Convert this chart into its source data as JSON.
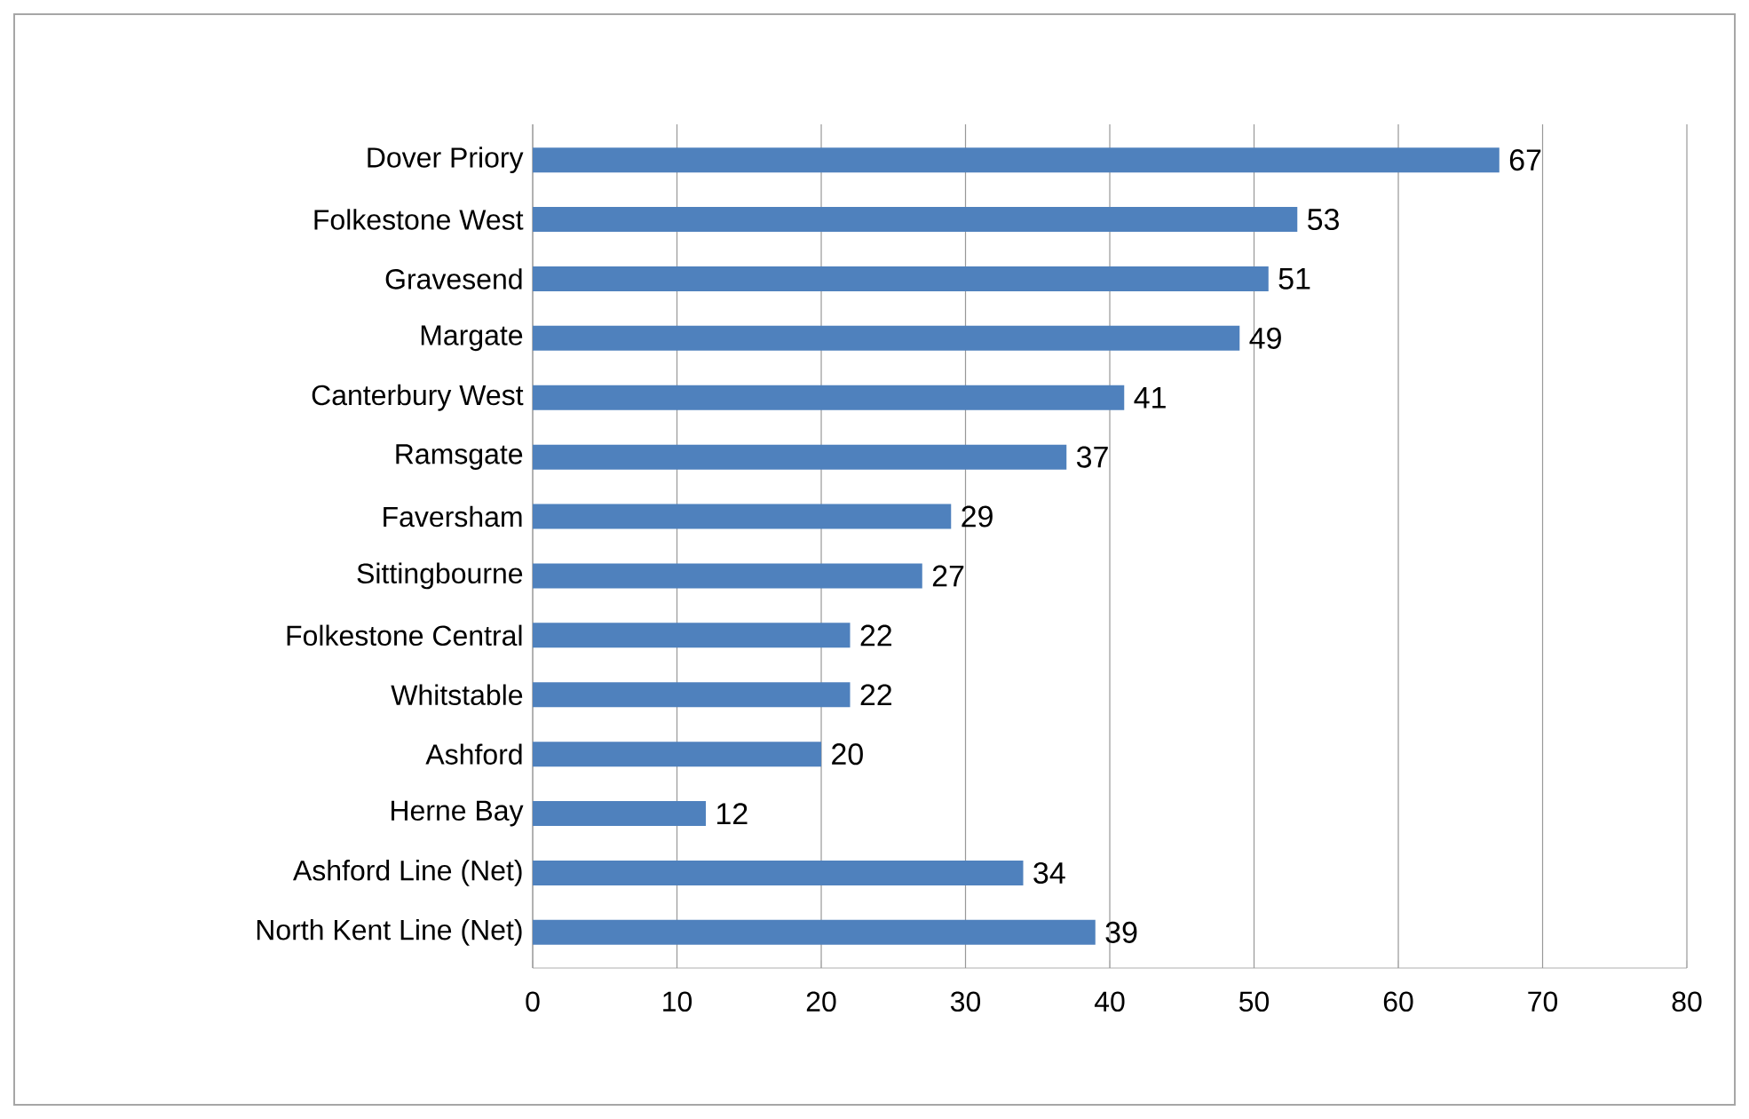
{
  "chart_data": {
    "type": "bar",
    "orientation": "horizontal",
    "categories": [
      "Dover Priory",
      "Folkestone West",
      "Gravesend",
      "Margate",
      "Canterbury West",
      "Ramsgate",
      "Faversham",
      "Sittingbourne",
      "Folkestone Central",
      "Whitstable",
      "Ashford",
      "Herne Bay",
      "Ashford Line (Net)",
      "North Kent Line (Net)"
    ],
    "values": [
      67,
      53,
      51,
      49,
      41,
      37,
      29,
      27,
      22,
      22,
      20,
      12,
      34,
      39
    ],
    "color": "#4f81bd",
    "xlim": [
      0,
      80
    ],
    "xticks": [
      0,
      10,
      20,
      30,
      40,
      50,
      60,
      70,
      80
    ],
    "grid": "x",
    "data_labels": true
  }
}
